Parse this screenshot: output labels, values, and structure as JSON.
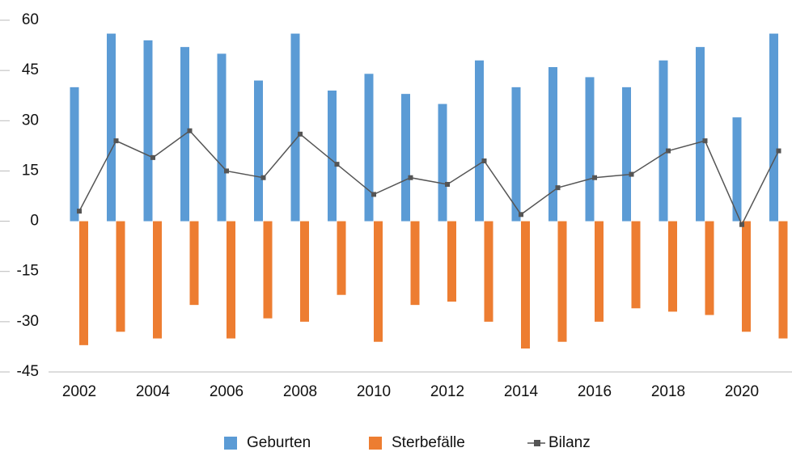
{
  "chart_data": {
    "type": "bar-line",
    "categories": [
      "2002",
      null,
      "2004",
      null,
      "2006",
      null,
      "2008",
      null,
      "2010",
      null,
      "2012",
      null,
      "2014",
      null,
      "2016",
      null,
      "2018",
      null,
      "2020",
      null
    ],
    "series": [
      {
        "name": "Geburten",
        "type": "bar",
        "color": "#5b9bd5",
        "values": [
          40,
          56,
          54,
          52,
          50,
          42,
          56,
          39,
          44,
          38,
          35,
          48,
          40,
          46,
          43,
          40,
          48,
          52,
          31,
          56
        ]
      },
      {
        "name": "Sterbefälle",
        "type": "bar",
        "color": "#ed7d31",
        "values": [
          -37,
          -33,
          -35,
          -25,
          -35,
          -29,
          -30,
          -22,
          -36,
          -25,
          -24,
          -30,
          -38,
          -36,
          -30,
          -26,
          -27,
          -28,
          -33,
          -35
        ]
      },
      {
        "name": "Bilanz",
        "type": "line",
        "color": "#555555",
        "values": [
          3,
          24,
          19,
          27,
          15,
          13,
          26,
          17,
          8,
          13,
          11,
          18,
          2,
          10,
          13,
          14,
          21,
          24,
          -1,
          21
        ]
      }
    ],
    "ylim": [
      -45,
      60
    ],
    "yticks": [
      -45,
      -30,
      -15,
      0,
      15,
      30,
      45,
      60
    ],
    "grid": false,
    "legend": "bottom"
  }
}
